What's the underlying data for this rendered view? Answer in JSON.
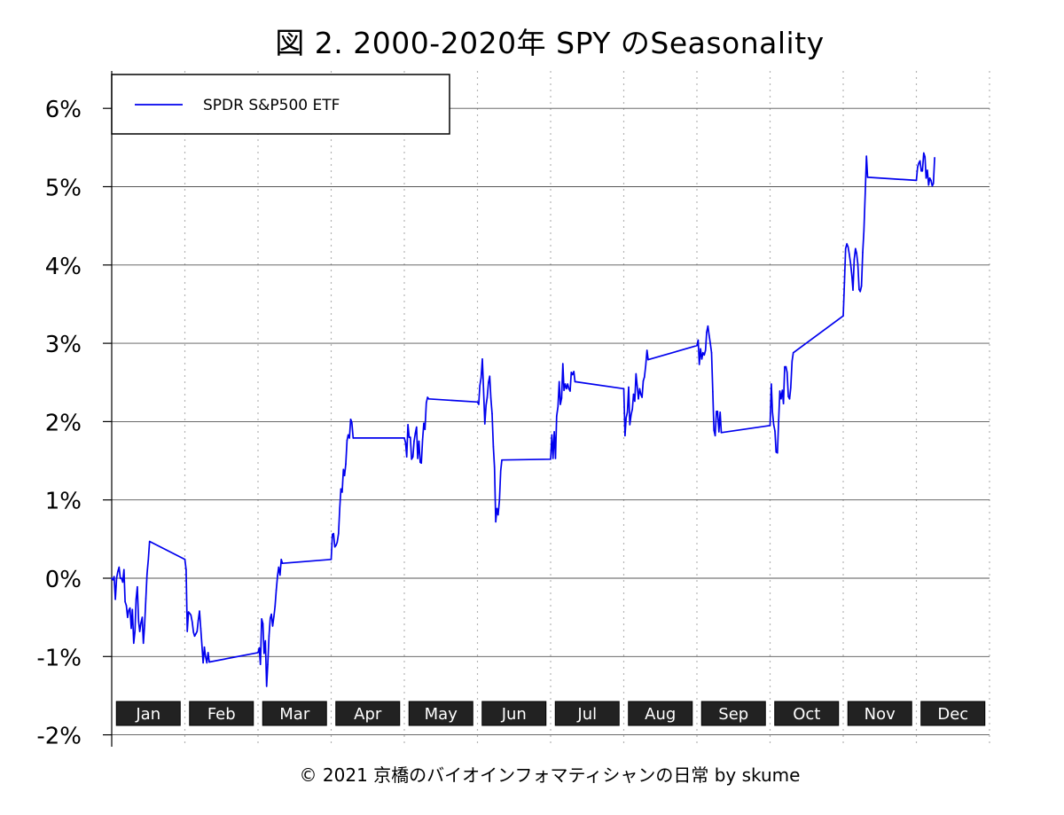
{
  "chart_data": {
    "type": "line",
    "title": "図 2. 2000-2020年 SPY のSeasonality",
    "xlabel": "",
    "ylabel": "",
    "ylim": [
      -2,
      6.3
    ],
    "y_ticks": [
      -2,
      -1,
      0,
      1,
      2,
      3,
      4,
      5,
      6
    ],
    "y_tick_labels": [
      "-2%",
      "-1%",
      "0%",
      "1%",
      "2%",
      "3%",
      "4%",
      "5%",
      "6%"
    ],
    "months": [
      "Jan",
      "Feb",
      "Mar",
      "Apr",
      "May",
      "Jun",
      "Jul",
      "Aug",
      "Sep",
      "Oct",
      "Nov",
      "Dec"
    ],
    "grid": "horizontal solid at y ticks; vertical dotted at month boundaries",
    "legend": {
      "position": "top-left",
      "entries": [
        "SPDR S&P500 ETF"
      ]
    },
    "series": [
      {
        "name": "SPDR S&P500 ETF",
        "color": "#0000ee",
        "points": [
          [
            0.0,
            0.0
          ],
          [
            0.017,
            -0.02
          ],
          [
            0.033,
            0.02
          ],
          [
            0.05,
            -0.27
          ],
          [
            0.067,
            0.0
          ],
          [
            0.083,
            0.08
          ],
          [
            0.1,
            0.14
          ],
          [
            0.117,
            0.0
          ],
          [
            0.133,
            0.0
          ],
          [
            0.15,
            -0.05
          ],
          [
            0.167,
            0.11
          ],
          [
            0.183,
            -0.3
          ],
          [
            0.2,
            -0.35
          ],
          [
            0.217,
            -0.5
          ],
          [
            0.233,
            -0.41
          ],
          [
            0.25,
            -0.38
          ],
          [
            0.267,
            -0.64
          ],
          [
            0.283,
            -0.4
          ],
          [
            0.3,
            -0.83
          ],
          [
            0.317,
            -0.68
          ],
          [
            0.333,
            -0.27
          ],
          [
            0.35,
            -0.11
          ],
          [
            0.367,
            -0.55
          ],
          [
            0.383,
            -0.68
          ],
          [
            0.4,
            -0.57
          ],
          [
            0.417,
            -0.5
          ],
          [
            0.433,
            -0.83
          ],
          [
            0.45,
            -0.6
          ],
          [
            0.467,
            -0.26
          ],
          [
            0.483,
            0.05
          ],
          [
            0.5,
            0.24
          ],
          [
            0.517,
            0.47
          ],
          [
            1.0,
            0.24
          ],
          [
            1.017,
            0.11
          ],
          [
            1.033,
            -0.68
          ],
          [
            1.05,
            -0.43
          ],
          [
            1.067,
            -0.45
          ],
          [
            1.083,
            -0.47
          ],
          [
            1.1,
            -0.56
          ],
          [
            1.117,
            -0.69
          ],
          [
            1.133,
            -0.74
          ],
          [
            1.15,
            -0.71
          ],
          [
            1.167,
            -0.68
          ],
          [
            1.183,
            -0.54
          ],
          [
            1.2,
            -0.42
          ],
          [
            1.217,
            -0.64
          ],
          [
            1.233,
            -0.85
          ],
          [
            1.25,
            -1.08
          ],
          [
            1.267,
            -0.88
          ],
          [
            1.283,
            -1.0
          ],
          [
            1.3,
            -1.08
          ],
          [
            1.317,
            -0.95
          ],
          [
            1.333,
            -1.07
          ],
          [
            2.0,
            -0.95
          ],
          [
            2.017,
            -0.89
          ],
          [
            2.033,
            -1.1
          ],
          [
            2.05,
            -0.52
          ],
          [
            2.067,
            -0.58
          ],
          [
            2.083,
            -0.96
          ],
          [
            2.1,
            -0.8
          ],
          [
            2.117,
            -1.38
          ],
          [
            2.133,
            -1.1
          ],
          [
            2.15,
            -0.74
          ],
          [
            2.167,
            -0.51
          ],
          [
            2.183,
            -0.46
          ],
          [
            2.2,
            -0.61
          ],
          [
            2.217,
            -0.49
          ],
          [
            2.233,
            -0.36
          ],
          [
            2.25,
            -0.15
          ],
          [
            2.267,
            0.03
          ],
          [
            2.283,
            0.14
          ],
          [
            2.3,
            0.04
          ],
          [
            2.317,
            0.24
          ],
          [
            2.333,
            0.19
          ],
          [
            3.0,
            0.24
          ],
          [
            3.017,
            0.56
          ],
          [
            3.033,
            0.57
          ],
          [
            3.05,
            0.4
          ],
          [
            3.067,
            0.42
          ],
          [
            3.083,
            0.46
          ],
          [
            3.1,
            0.57
          ],
          [
            3.117,
            0.9
          ],
          [
            3.133,
            1.14
          ],
          [
            3.15,
            1.1
          ],
          [
            3.167,
            1.39
          ],
          [
            3.183,
            1.31
          ],
          [
            3.2,
            1.46
          ],
          [
            3.217,
            1.76
          ],
          [
            3.233,
            1.83
          ],
          [
            3.25,
            1.79
          ],
          [
            3.267,
            2.03
          ],
          [
            3.283,
            1.99
          ],
          [
            3.3,
            1.79
          ],
          [
            4.0,
            1.79
          ],
          [
            4.017,
            1.73
          ],
          [
            4.033,
            1.55
          ],
          [
            4.05,
            1.96
          ],
          [
            4.067,
            1.8
          ],
          [
            4.083,
            1.8
          ],
          [
            4.1,
            1.52
          ],
          [
            4.117,
            1.55
          ],
          [
            4.133,
            1.75
          ],
          [
            4.15,
            1.85
          ],
          [
            4.167,
            1.93
          ],
          [
            4.183,
            1.53
          ],
          [
            4.2,
            1.75
          ],
          [
            4.217,
            1.48
          ],
          [
            4.233,
            1.47
          ],
          [
            4.25,
            1.77
          ],
          [
            4.267,
            1.98
          ],
          [
            4.283,
            1.9
          ],
          [
            4.3,
            2.24
          ],
          [
            4.317,
            2.31
          ],
          [
            4.333,
            2.29
          ],
          [
            5.0,
            2.25
          ],
          [
            5.017,
            2.22
          ],
          [
            5.033,
            2.46
          ],
          [
            5.05,
            2.56
          ],
          [
            5.067,
            2.8
          ],
          [
            5.083,
            2.42
          ],
          [
            5.1,
            1.97
          ],
          [
            5.117,
            2.21
          ],
          [
            5.133,
            2.31
          ],
          [
            5.15,
            2.5
          ],
          [
            5.167,
            2.58
          ],
          [
            5.183,
            2.3
          ],
          [
            5.2,
            2.1
          ],
          [
            5.217,
            1.68
          ],
          [
            5.233,
            1.42
          ],
          [
            5.25,
            0.72
          ],
          [
            5.267,
            0.89
          ],
          [
            5.283,
            0.81
          ],
          [
            5.3,
            1.0
          ],
          [
            5.317,
            1.37
          ],
          [
            5.333,
            1.51
          ],
          [
            6.0,
            1.52
          ],
          [
            6.017,
            1.83
          ],
          [
            6.033,
            1.53
          ],
          [
            6.05,
            1.87
          ],
          [
            6.067,
            1.53
          ],
          [
            6.083,
            2.07
          ],
          [
            6.1,
            2.19
          ],
          [
            6.117,
            2.51
          ],
          [
            6.133,
            2.22
          ],
          [
            6.15,
            2.3
          ],
          [
            6.167,
            2.74
          ],
          [
            6.183,
            2.4
          ],
          [
            6.2,
            2.48
          ],
          [
            6.217,
            2.42
          ],
          [
            6.233,
            2.48
          ],
          [
            6.25,
            2.42
          ],
          [
            6.267,
            2.39
          ],
          [
            6.283,
            2.63
          ],
          [
            6.3,
            2.6
          ],
          [
            6.317,
            2.64
          ],
          [
            6.333,
            2.51
          ],
          [
            7.0,
            2.42
          ],
          [
            7.017,
            1.82
          ],
          [
            7.033,
            2.05
          ],
          [
            7.05,
            2.12
          ],
          [
            7.067,
            2.44
          ],
          [
            7.083,
            1.96
          ],
          [
            7.1,
            2.09
          ],
          [
            7.117,
            2.16
          ],
          [
            7.133,
            2.35
          ],
          [
            7.15,
            2.26
          ],
          [
            7.167,
            2.61
          ],
          [
            7.183,
            2.46
          ],
          [
            7.2,
            2.29
          ],
          [
            7.217,
            2.42
          ],
          [
            7.233,
            2.35
          ],
          [
            7.25,
            2.31
          ],
          [
            7.267,
            2.52
          ],
          [
            7.283,
            2.57
          ],
          [
            7.3,
            2.72
          ],
          [
            7.317,
            2.91
          ],
          [
            7.333,
            2.79
          ],
          [
            8.0,
            2.97
          ],
          [
            8.017,
            3.04
          ],
          [
            8.033,
            2.73
          ],
          [
            8.05,
            2.93
          ],
          [
            8.067,
            2.8
          ],
          [
            8.083,
            2.88
          ],
          [
            8.1,
            2.85
          ],
          [
            8.117,
            2.91
          ],
          [
            8.133,
            3.14
          ],
          [
            8.15,
            3.22
          ],
          [
            8.167,
            3.1
          ],
          [
            8.183,
            3.0
          ],
          [
            8.2,
            2.88
          ],
          [
            8.217,
            2.38
          ],
          [
            8.233,
            1.89
          ],
          [
            8.25,
            1.82
          ],
          [
            8.267,
            2.13
          ],
          [
            8.283,
            2.13
          ],
          [
            8.3,
            1.87
          ],
          [
            8.317,
            2.12
          ],
          [
            8.333,
            1.86
          ],
          [
            9.0,
            1.95
          ],
          [
            9.017,
            2.48
          ],
          [
            9.033,
            2.12
          ],
          [
            9.05,
            1.96
          ],
          [
            9.067,
            1.88
          ],
          [
            9.083,
            1.61
          ],
          [
            9.1,
            1.6
          ],
          [
            9.117,
            2.02
          ],
          [
            9.133,
            2.39
          ],
          [
            9.15,
            2.29
          ],
          [
            9.167,
            2.4
          ],
          [
            9.183,
            2.23
          ],
          [
            9.2,
            2.7
          ],
          [
            9.217,
            2.7
          ],
          [
            9.233,
            2.63
          ],
          [
            9.25,
            2.32
          ],
          [
            9.267,
            2.29
          ],
          [
            9.283,
            2.43
          ],
          [
            9.3,
            2.77
          ],
          [
            9.317,
            2.88
          ],
          [
            9.333,
            2.89
          ],
          [
            10.0,
            3.35
          ],
          [
            10.017,
            3.78
          ],
          [
            10.033,
            4.21
          ],
          [
            10.05,
            4.27
          ],
          [
            10.067,
            4.23
          ],
          [
            10.083,
            4.14
          ],
          [
            10.1,
            4.02
          ],
          [
            10.117,
            3.87
          ],
          [
            10.133,
            3.68
          ],
          [
            10.15,
            4.07
          ],
          [
            10.167,
            4.21
          ],
          [
            10.183,
            4.15
          ],
          [
            10.2,
            4.01
          ],
          [
            10.217,
            3.69
          ],
          [
            10.233,
            3.66
          ],
          [
            10.25,
            3.73
          ],
          [
            10.267,
            4.16
          ],
          [
            10.283,
            4.43
          ],
          [
            10.3,
            4.91
          ],
          [
            10.317,
            5.39
          ],
          [
            10.333,
            5.12
          ],
          [
            11.0,
            5.08
          ],
          [
            11.017,
            5.25
          ],
          [
            11.033,
            5.3
          ],
          [
            11.05,
            5.33
          ],
          [
            11.067,
            5.2
          ],
          [
            11.083,
            5.2
          ],
          [
            11.1,
            5.43
          ],
          [
            11.117,
            5.38
          ],
          [
            11.133,
            5.11
          ],
          [
            11.15,
            5.21
          ],
          [
            11.167,
            5.02
          ],
          [
            11.183,
            5.11
          ],
          [
            11.2,
            5.08
          ],
          [
            11.217,
            5.01
          ],
          [
            11.233,
            5.04
          ],
          [
            11.25,
            5.37
          ]
        ]
      }
    ],
    "copyright": "© 2021 京橋のバイオインフォマティシャンの日常 by skume"
  }
}
